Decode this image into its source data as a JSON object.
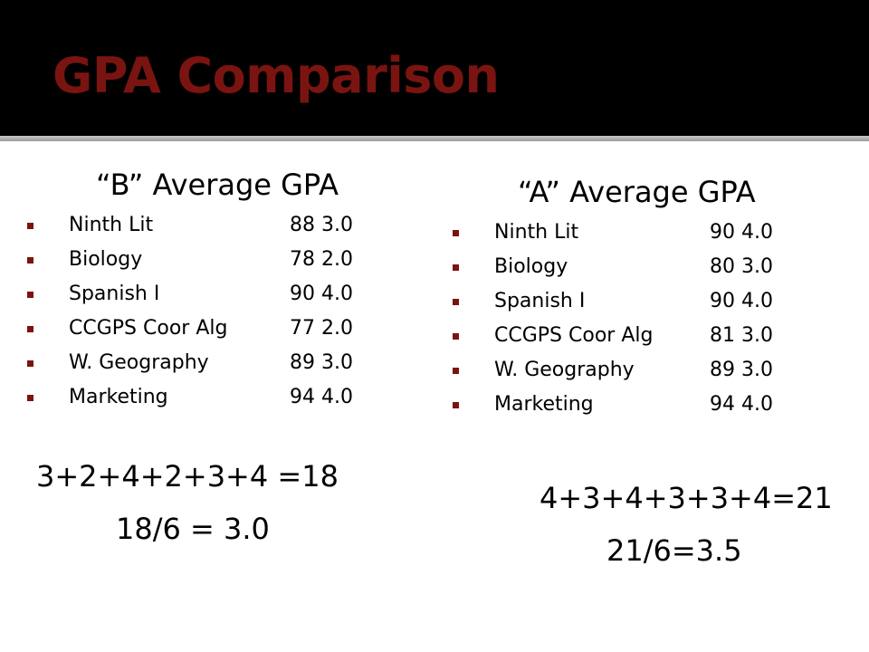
{
  "slide": {
    "title": "GPA Comparison",
    "colors": {
      "title": "#7a1410",
      "bullet": "#7a1410",
      "header_background": "#000000",
      "body_background": "#ffffff"
    }
  },
  "left_column": {
    "heading": "“B” Average GPA",
    "items": [
      {
        "subject": "Ninth Lit",
        "grade": "88  3.0"
      },
      {
        "subject": "Biology",
        "grade": "78  2.0"
      },
      {
        "subject": "Spanish I",
        "grade": "90  4.0"
      },
      {
        "subject": "CCGPS Coor Alg",
        "grade": "77  2.0"
      },
      {
        "subject": "W. Geography",
        "grade": "89  3.0"
      },
      {
        "subject": "Marketing",
        "grade": "94  4.0"
      }
    ],
    "sum": "3+2+4+2+3+4 =18",
    "average": "18/6 = 3.0"
  },
  "right_column": {
    "heading": "“A” Average GPA",
    "items": [
      {
        "subject": "Ninth Lit",
        "grade": "90 4.0"
      },
      {
        "subject": "Biology",
        "grade": "80  3.0"
      },
      {
        "subject": "Spanish I",
        "grade": "90  4.0"
      },
      {
        "subject": "CCGPS Coor Alg",
        "grade": "81  3.0"
      },
      {
        "subject": "W. Geography",
        "grade": "89  3.0"
      },
      {
        "subject": "Marketing",
        "grade": "94  4.0"
      }
    ],
    "sum": "4+3+4+3+3+4=21",
    "average": "21/6=3.5"
  }
}
